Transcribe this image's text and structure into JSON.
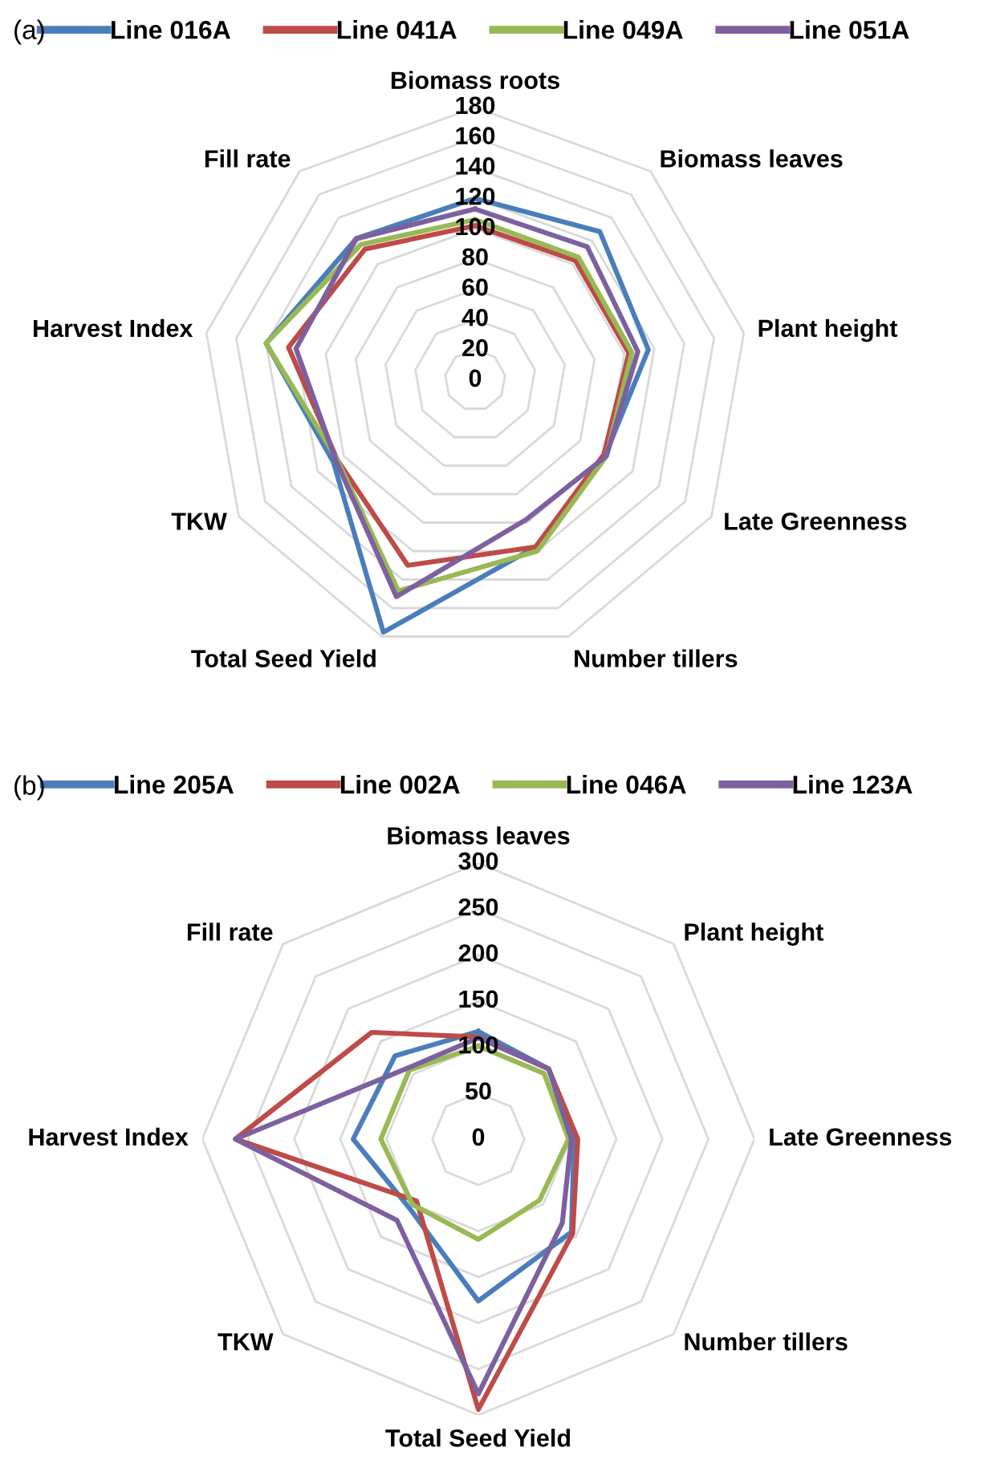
{
  "chart_data": [
    {
      "type": "radar",
      "title": "(a)",
      "categories": [
        "Biomass roots",
        "Biomass leaves",
        "Plant height",
        "Late Greenness",
        "Number tillers",
        "Total Seed Yield",
        "TKW",
        "Harvest Index",
        "Fill rate"
      ],
      "ylim": [
        0,
        180
      ],
      "yticks": [
        0,
        20,
        40,
        60,
        80,
        100,
        120,
        140,
        160,
        180
      ],
      "grid": true,
      "legend": "top",
      "series": [
        {
          "name": "Line 016A",
          "color": "#4a7ebb",
          "values": [
            120,
            128,
            116,
            99,
            117,
            177,
            108,
            140,
            122
          ]
        },
        {
          "name": "Line 041A",
          "color": "#be4b48",
          "values": [
            102,
            103,
            103,
            98,
            117,
            130,
            105,
            125,
            113
          ]
        },
        {
          "name": "Line 049A",
          "color": "#98b954",
          "values": [
            106,
            106,
            105,
            100,
            120,
            148,
            105,
            140,
            117
          ]
        },
        {
          "name": "Line 051A",
          "color": "#7d60a0",
          "values": [
            113,
            115,
            109,
            100,
            98,
            152,
            106,
            120,
            122
          ]
        }
      ]
    },
    {
      "type": "radar",
      "title": "(b)",
      "categories": [
        "Biomass leaves",
        "Plant height",
        "Late Greenness",
        "Number tillers",
        "Total Seed Yield",
        "TKW",
        "Harvest Index",
        "Fill rate"
      ],
      "ylim": [
        0,
        300
      ],
      "yticks": [
        0,
        50,
        100,
        150,
        200,
        250,
        300
      ],
      "grid": true,
      "legend": "top",
      "series": [
        {
          "name": "Line 205A",
          "color": "#4a7ebb",
          "values": [
            117,
            108,
            104,
            143,
            176,
            106,
            136,
            128
          ]
        },
        {
          "name": "Line 002A",
          "color": "#be4b48",
          "values": [
            111,
            108,
            108,
            145,
            294,
            95,
            264,
            164
          ]
        },
        {
          "name": "Line 046A",
          "color": "#98b954",
          "values": [
            101,
            101,
            98,
            94,
            109,
            101,
            106,
            106
          ]
        },
        {
          "name": "Line 123A",
          "color": "#7d60a0",
          "values": [
            110,
            108,
            101,
            129,
            277,
            125,
            264,
            109
          ]
        }
      ]
    }
  ]
}
